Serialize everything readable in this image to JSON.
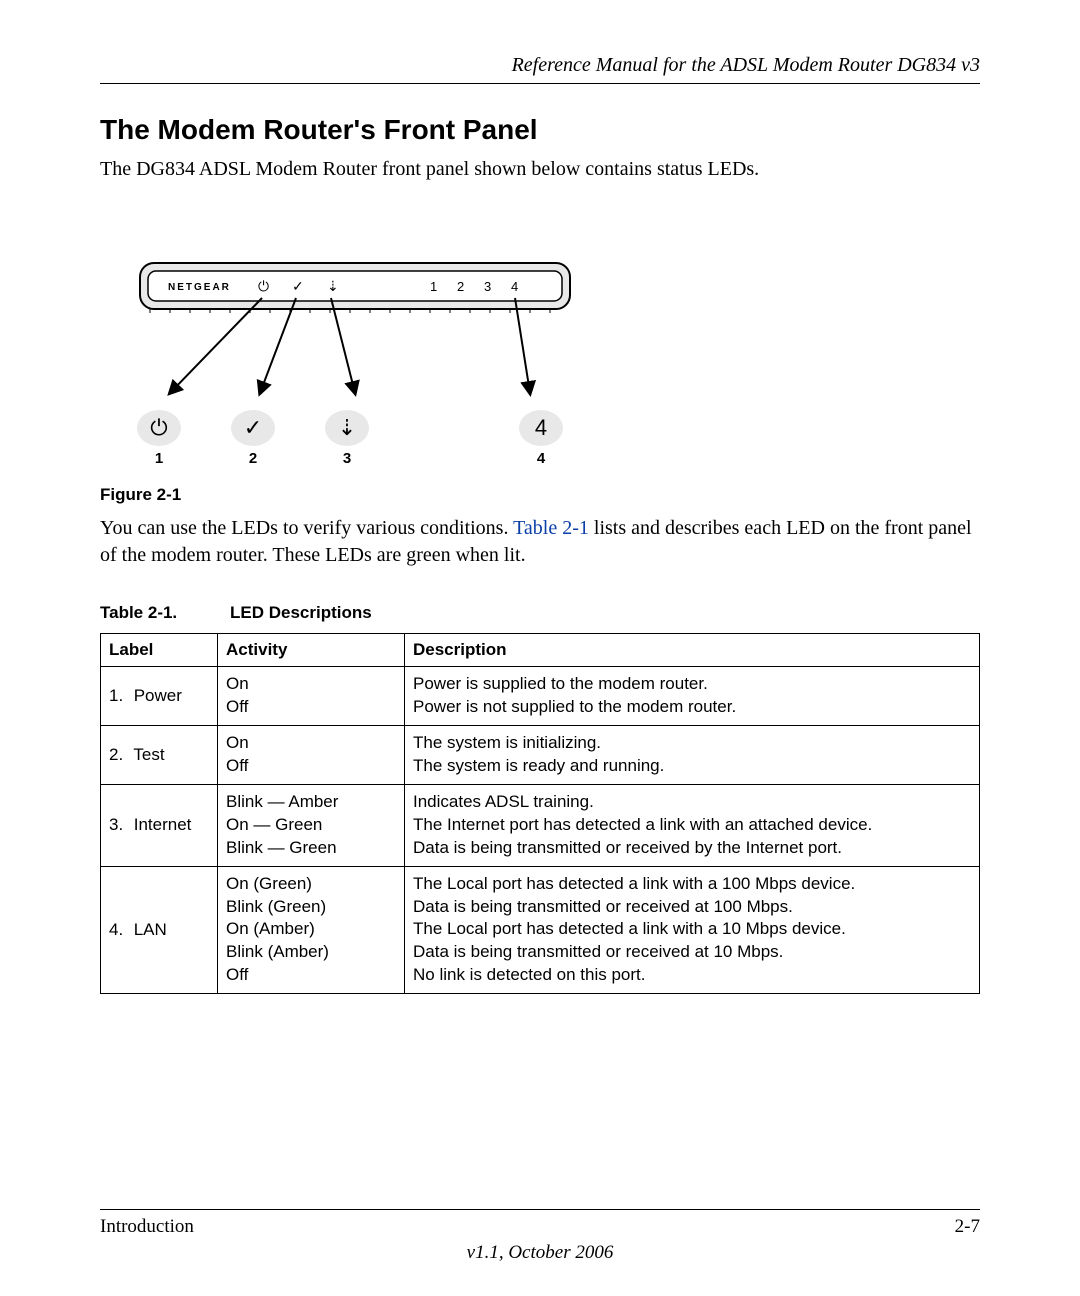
{
  "header": {
    "title": "Reference Manual for the ADSL Modem Router DG834 v3"
  },
  "section": {
    "title": "The Modem Router's Front Panel",
    "intro": "The DG834 ADSL Modem Router front panel shown below contains status LEDs.",
    "figure_caption": "Figure 2-1",
    "body_before_link": "You can use the LEDs to verify various conditions. ",
    "link_text": "Table 2-1",
    "body_after_link": " lists and describes each LED on the front panel of the modem router. These LEDs are green when lit."
  },
  "diagram": {
    "brand": "NETGEAR",
    "panel_symbols": [
      "⏻",
      "✓",
      "⇣",
      "1",
      "2",
      "3",
      "4"
    ],
    "callouts": [
      {
        "symbol": "⏻",
        "num": "1"
      },
      {
        "symbol": "✓",
        "num": "2"
      },
      {
        "symbol": "⇣",
        "num": "3"
      },
      {
        "symbol": "4",
        "num": "4"
      }
    ],
    "colors": {
      "device_fill": "#e8e8e8",
      "stroke": "#000000",
      "arrow_fill": "#000000"
    }
  },
  "table": {
    "caption_num": "Table 2-1.",
    "caption_title": "LED Descriptions",
    "columns": [
      "Label",
      "Activity",
      "Description"
    ],
    "rows": [
      {
        "num": "1.",
        "name": "Power",
        "activity": "On\nOff",
        "description": "Power is supplied to the modem router.\nPower is not supplied to the modem router."
      },
      {
        "num": "2.",
        "name": "Test",
        "activity": "On\nOff",
        "description": "The system is initializing.\nThe system is ready and running."
      },
      {
        "num": "3.",
        "name": "Internet",
        "activity": "Blink — Amber\nOn — Green\nBlink — Green",
        "description": "Indicates ADSL training.\nThe Internet port has detected a link with an attached device.\nData is being transmitted or received by the Internet port."
      },
      {
        "num": "4.",
        "name": "LAN",
        "activity": "On (Green)\nBlink (Green)\nOn (Amber)\nBlink (Amber)\nOff",
        "description": "The Local port has detected a link with a 100 Mbps device.\nData is being transmitted or received at 100 Mbps.\nThe Local port has detected a link with a 10 Mbps device.\nData is being transmitted or received at 10 Mbps.\nNo link is detected on this port."
      }
    ]
  },
  "footer": {
    "left": "Introduction",
    "right": "2-7",
    "version": "v1.1, October 2006"
  }
}
